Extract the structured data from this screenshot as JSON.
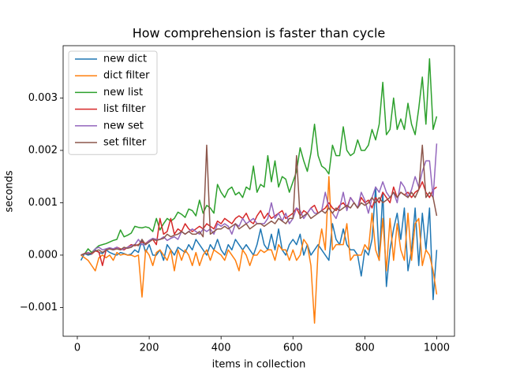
{
  "chart_data": {
    "type": "line",
    "title": "How comprehension is faster than cycle",
    "x_label": "items in collection",
    "y_label": "seconds",
    "x": [
      10,
      20,
      30,
      40,
      50,
      60,
      70,
      80,
      90,
      100,
      110,
      120,
      130,
      140,
      150,
      160,
      170,
      180,
      190,
      200,
      210,
      220,
      230,
      240,
      250,
      260,
      270,
      280,
      290,
      300,
      310,
      320,
      330,
      340,
      350,
      360,
      370,
      380,
      390,
      400,
      410,
      420,
      430,
      440,
      450,
      460,
      470,
      480,
      490,
      500,
      510,
      520,
      530,
      540,
      550,
      560,
      570,
      580,
      590,
      600,
      610,
      620,
      630,
      640,
      650,
      660,
      670,
      680,
      690,
      700,
      710,
      720,
      730,
      740,
      750,
      760,
      770,
      780,
      790,
      800,
      810,
      820,
      830,
      840,
      850,
      860,
      870,
      880,
      890,
      900,
      910,
      920,
      930,
      940,
      950,
      960,
      970,
      980,
      990,
      1000
    ],
    "xlim": [
      -39.5,
      1049.5
    ],
    "xticks": [
      0,
      200,
      400,
      600,
      800,
      1000
    ],
    "ylim": [
      -0.00155,
      0.004
    ],
    "yticks": [
      {
        "value": -0.001,
        "label": "−0.001"
      },
      {
        "value": 0,
        "label": "0.000"
      },
      {
        "value": 0.001,
        "label": "0.001"
      },
      {
        "value": 0.002,
        "label": "0.002"
      },
      {
        "value": 0.003,
        "label": "0.003"
      }
    ],
    "legend": "upper left",
    "series": [
      {
        "name": "new dict",
        "color": "#1f77b4",
        "values": [
          -0.0001,
          3e-05,
          0,
          2e-05,
          0.0001,
          5e-05,
          3e-05,
          0.0001,
          5e-05,
          2e-05,
          0,
          5e-05,
          3e-05,
          0,
          2e-05,
          0.0001,
          5e-05,
          0.0003,
          5e-05,
          0.0002,
          0,
          0,
          0.0001,
          -0.0001,
          0.0002,
          0.0001,
          0,
          0.00015,
          0.0001,
          5e-05,
          0.0002,
          0.0001,
          0.0003,
          0.0002,
          0.0001,
          0,
          0.0002,
          0.0001,
          0.0003,
          0.0001,
          0,
          0.0002,
          0.0001,
          0.0003,
          0.0002,
          0.0001,
          0.0002,
          0.0001,
          0,
          0.0002,
          0.0005,
          0.0002,
          0.0001,
          0.0004,
          0.0001,
          0.0005,
          0.0001,
          0,
          0.0002,
          0.0003,
          0.0002,
          0.0004,
          0,
          0.0002,
          0,
          0.0001,
          0.0002,
          0.0001,
          0,
          -0.0001,
          0.0006,
          0.0003,
          0.0002,
          0.0005,
          0.0002,
          0.0001,
          0.0001,
          0,
          -0.0004,
          0.0001,
          0,
          0.0003,
          0.0013,
          -0.0001,
          0.0012,
          -0.0006,
          0.0001,
          0.0005,
          0.0008,
          0.0003,
          0.0009,
          -0.0003,
          0.0001,
          0.0009,
          -0.0002,
          0.0008,
          0.0001,
          0.0009,
          -0.00085,
          0.0001
        ]
      },
      {
        "name": "dict filter",
        "color": "#ff7f0e",
        "values": [
          0,
          -5e-05,
          -0.0001,
          -0.0002,
          -0.0003,
          -5e-05,
          0,
          -5e-05,
          0,
          -0.0001,
          5e-05,
          0,
          2e-05,
          0,
          0,
          -3e-05,
          0,
          -0.0008,
          0.0001,
          0,
          -0.0002,
          5e-05,
          0.0001,
          0,
          -0.0001,
          0.0001,
          -0.0003,
          0.0001,
          -0.0001,
          0.0001,
          0,
          -0.0002,
          5e-05,
          -0.0002,
          0,
          0.0001,
          -0.0001,
          0.0001,
          5e-05,
          0,
          -0.0001,
          0.0001,
          0,
          -0.0001,
          -0.0003,
          0.0001,
          0,
          -0.0002,
          0,
          0,
          0.0001,
          5e-05,
          0.0001,
          0.0001,
          -0.0001,
          0.0002,
          0.0001,
          0.0001,
          -0.0001,
          0.0001,
          -0.0001,
          0,
          0.0003,
          0.0002,
          -0.0002,
          -0.0013,
          0.0001,
          0.0005,
          0.0001,
          0.0015,
          0.0001,
          0.0002,
          0.0002,
          0.0002,
          0.0006,
          -0.0001,
          0,
          0,
          0,
          0.0002,
          0.0001,
          0.0008,
          0.0001,
          -0.0001,
          0.0007,
          -0.0003,
          0.0007,
          -0.0001,
          0.0006,
          0.0001,
          -0.0001,
          0.0008,
          -0.0001,
          0.0006,
          0.0007,
          -0.0002,
          0.0001,
          0,
          -0.0003,
          -0.00075
        ]
      },
      {
        "name": "new list",
        "color": "#2ca02c",
        "values": [
          0,
          2e-05,
          0.00012,
          5e-05,
          0.00012,
          0.00018,
          0.0002,
          0.00022,
          0.00025,
          0.00028,
          0.0003,
          0.00048,
          0.00035,
          0.00038,
          0.00042,
          0.00055,
          0.00053,
          0.00052,
          0.00054,
          0.00052,
          0.00045,
          0.0007,
          0.00048,
          0.0006,
          0.0007,
          0.00065,
          0.0007,
          0.00082,
          0.00078,
          0.00072,
          0.00088,
          0.00085,
          0.00075,
          0.00105,
          0.0008,
          0.00095,
          0.0009,
          0.0008,
          0.00135,
          0.0012,
          0.0011,
          0.00125,
          0.0013,
          0.00115,
          0.0012,
          0.0011,
          0.0013,
          0.00125,
          0.0017,
          0.0012,
          0.00135,
          0.0013,
          0.0019,
          0.0014,
          0.0018,
          0.0013,
          0.0015,
          0.00145,
          0.0012,
          0.0014,
          0.0016,
          0.00205,
          0.0018,
          0.0016,
          0.00195,
          0.0025,
          0.0019,
          0.0017,
          0.00165,
          0.00155,
          0.0021,
          0.0019,
          0.0019,
          0.00245,
          0.002,
          0.0019,
          0.00195,
          0.0022,
          0.002,
          0.002,
          0.0021,
          0.0024,
          0.0022,
          0.0025,
          0.0033,
          0.0023,
          0.0024,
          0.003,
          0.0024,
          0.0026,
          0.0024,
          0.0029,
          0.0025,
          0.0023,
          0.0028,
          0.0034,
          0.0025,
          0.00375,
          0.0024,
          0.00265
        ]
      },
      {
        "name": "list filter",
        "color": "#d62728",
        "values": [
          0,
          3e-05,
          5e-05,
          2e-05,
          8e-05,
          6e-05,
          -0.0002,
          0.0001,
          0.00012,
          0.0001,
          0.00015,
          0.00012,
          0.0001,
          0.00015,
          0.0002,
          0.00018,
          0.0002,
          0.00025,
          0.00022,
          0.00028,
          0.0003,
          0.0002,
          0.0007,
          0.0004,
          0.00045,
          0.0007,
          0.0004,
          0.0005,
          0.00045,
          0.0006,
          0.0005,
          0.00045,
          0.0005,
          0.00055,
          0.0005,
          0.0006,
          0.00055,
          0.0005,
          0.00065,
          0.0006,
          0.0007,
          0.00065,
          0.0006,
          0.0007,
          0.00075,
          0.0007,
          0.0008,
          0.00065,
          0.0006,
          0.00075,
          0.00085,
          0.0007,
          0.0008,
          0.0007,
          0.00075,
          0.0008,
          0.00085,
          0.0007,
          0.00075,
          0.0008,
          0.0009,
          0.00075,
          0.00085,
          0.0008,
          0.0009,
          0.00095,
          0.0008,
          0.00085,
          0.0009,
          0.001,
          0.0009,
          0.00085,
          0.00095,
          0.001,
          0.0009,
          0.0011,
          0.001,
          0.0009,
          0.0011,
          0.001,
          0.00105,
          0.0009,
          0.0011,
          0.001,
          0.0012,
          0.0011,
          0.001,
          0.0013,
          0.0011,
          0.0012,
          0.00115,
          0.0012,
          0.0011,
          0.0012,
          0.00125,
          0.0014,
          0.0012,
          0.0011,
          0.00125,
          0.0013
        ]
      },
      {
        "name": "new set",
        "color": "#9467bd",
        "values": [
          0,
          2e-05,
          5e-05,
          3e-05,
          0.00012,
          0.00015,
          0.0001,
          0.00012,
          0.00014,
          0.00012,
          0.00015,
          0.0001,
          0.00012,
          0.00015,
          0.00018,
          0.0002,
          0.0003,
          0.0002,
          0.0002,
          0.00028,
          0.00032,
          0.0003,
          0.0003,
          0.00035,
          0.00028,
          0.00032,
          0.00035,
          0.0003,
          0.00045,
          0.0004,
          0.00045,
          0.0005,
          0.00045,
          0.0004,
          0.0005,
          0.00045,
          0.0005,
          0.0004,
          0.0006,
          0.00055,
          0.0006,
          0.00055,
          0.0004,
          0.0006,
          0.00055,
          0.0007,
          0.0006,
          0.00065,
          0.0007,
          0.0006,
          0.0006,
          0.0006,
          0.0007,
          0.001,
          0.0007,
          0.0008,
          0.00065,
          0.0008,
          0.0006,
          0.0007,
          0.0009,
          0.00085,
          0.0007,
          0.0008,
          0.0009,
          0.0008,
          0.0008,
          0.00085,
          0.0012,
          0.0009,
          0.0008,
          0.0007,
          0.0009,
          0.0012,
          0.00085,
          0.0011,
          0.001,
          0.0009,
          0.0012,
          0.00105,
          0.0008,
          0.0011,
          0.0013,
          0.0012,
          0.0014,
          0.0012,
          0.0011,
          0.0012,
          0.001,
          0.0014,
          0.0013,
          0.0011,
          0.00125,
          0.0015,
          0.0013,
          0.0016,
          0.0018,
          0.0018,
          0.0011,
          0.00213
        ]
      },
      {
        "name": "set filter",
        "color": "#8c564b",
        "values": [
          0,
          3e-05,
          2e-05,
          4e-05,
          8e-05,
          0.0001,
          5e-05,
          0.0001,
          0.00012,
          0.0001,
          0.00012,
          0.0001,
          0.00015,
          0.00013,
          0.00015,
          0.0002,
          0.00018,
          0.0003,
          0.0002,
          0.00025,
          0.0003,
          0.00028,
          0.0003,
          0.00032,
          0.0004,
          0.00035,
          0.00038,
          0.0004,
          0.00045,
          0.0004,
          0.00045,
          0.0004,
          0.0004,
          0.00045,
          0.00035,
          0.0021,
          0.0004,
          0.00045,
          0.0005,
          0.0005,
          0.00055,
          0.0005,
          0.00055,
          0.0006,
          0.0005,
          0.00055,
          0.0006,
          0.0005,
          0.00055,
          0.0006,
          0.0006,
          0.00055,
          0.0006,
          0.00065,
          0.0006,
          0.0007,
          0.00065,
          0.0006,
          0.0007,
          0.0007,
          0.0019,
          0.0007,
          0.00075,
          0.0008,
          0.0007,
          0.00075,
          0.0008,
          0.00085,
          0.0008,
          0.0009,
          0.0008,
          0.0009,
          0.00085,
          0.0009,
          0.00095,
          0.0009,
          0.001,
          0.0009,
          0.001,
          0.00095,
          0.001,
          0.0011,
          0.001,
          0.0011,
          0.001,
          0.00105,
          0.0011,
          0.0012,
          0.0011,
          0.0012,
          0.00115,
          0.0011,
          0.0012,
          0.0011,
          0.00125,
          0.0021,
          0.0011,
          0.0012,
          0.0011,
          0.00075
        ]
      }
    ]
  }
}
